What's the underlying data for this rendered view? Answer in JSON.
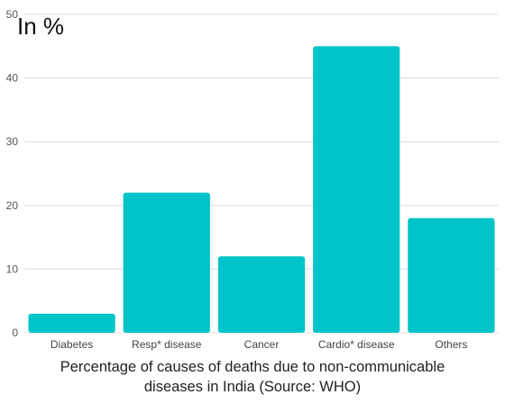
{
  "chart_data": {
    "type": "bar",
    "unit_label": "In %",
    "categories": [
      "Diabetes",
      "Resp* disease",
      "Cancer",
      "Cardio* disease",
      "Others"
    ],
    "values": [
      3,
      22,
      12,
      45,
      18
    ],
    "ylim": [
      0,
      50
    ],
    "yticks": [
      0,
      10,
      20,
      30,
      40,
      50
    ],
    "grid": true,
    "bar_color": "#00c4c9",
    "caption_lines": [
      "Percentage of causes of deaths due to non-communicable",
      "diseases in India (Source: WHO)"
    ]
  }
}
